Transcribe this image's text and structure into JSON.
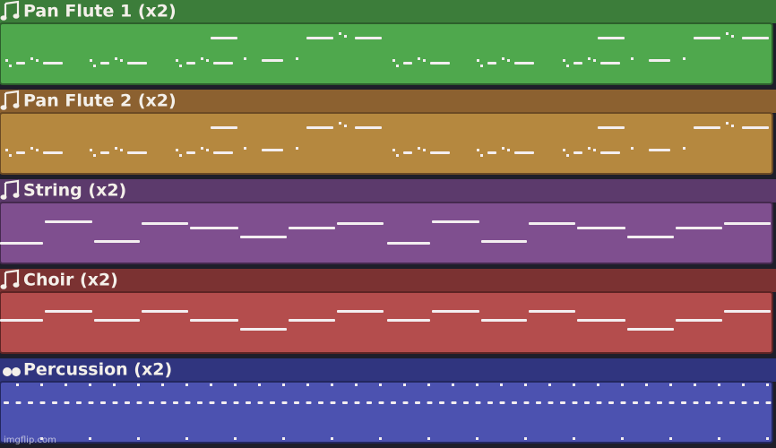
{
  "tracks": [
    {
      "label": "Pan Flute 1 (x2)"
    },
    {
      "label": "Pan Flute 2 (x2)"
    },
    {
      "label": "String (x2)"
    },
    {
      "label": "Choir (x2)"
    },
    {
      "label": "Percussion (x2)"
    }
  ],
  "watermark": "imgflip.com"
}
